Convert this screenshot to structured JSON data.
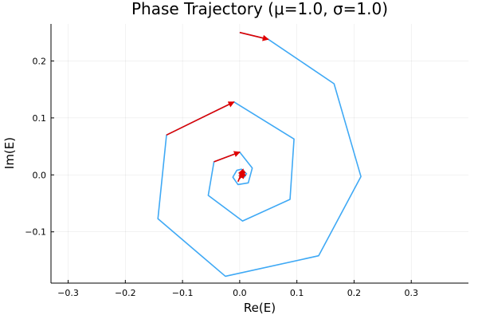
{
  "chart_data": {
    "type": "line",
    "title": "Phase Trajectory (μ=1.0, σ=1.0)",
    "xlabel": "Re(E)",
    "ylabel": "Im(E)",
    "xlim": [
      -0.33,
      0.4
    ],
    "ylim": [
      -0.19,
      0.265
    ],
    "xticks": [
      -0.3,
      -0.2,
      -0.1,
      0.0,
      0.1,
      0.2,
      0.3
    ],
    "xtick_labels": [
      "−0.3",
      "−0.2",
      "−0.1",
      "0.0",
      "0.1",
      "0.2",
      "0.3"
    ],
    "yticks": [
      -0.1,
      0.0,
      0.1,
      0.2
    ],
    "ytick_labels": [
      "−0.1",
      "0.0",
      "0.1",
      "0.2"
    ],
    "grid": true,
    "legend": "none",
    "series": [
      {
        "name": "trajectory",
        "color": "#3fa9f5",
        "x": [
          0.0,
          0.05,
          0.165,
          0.212,
          0.138,
          -0.025,
          -0.143,
          -0.128,
          -0.01,
          0.095,
          0.088,
          0.005,
          -0.055,
          -0.045,
          0.0,
          0.022,
          0.015,
          -0.003,
          -0.012,
          -0.005,
          0.003,
          0.012,
          0.008,
          0.003,
          0.0,
          0.004,
          0.007,
          0.005,
          0.003
        ],
        "y": [
          0.25,
          0.238,
          0.16,
          -0.003,
          -0.142,
          -0.178,
          -0.077,
          0.07,
          0.128,
          0.063,
          -0.043,
          -0.081,
          -0.036,
          0.023,
          0.04,
          0.012,
          -0.014,
          -0.017,
          -0.004,
          0.008,
          0.01,
          0.002,
          -0.004,
          -0.003,
          0.001,
          0.003,
          0.001,
          -0.001,
          0.0
        ]
      }
    ],
    "arrows": [
      {
        "color": "#e00000",
        "from": [
          0.0,
          0.25
        ],
        "to": [
          0.05,
          0.238
        ]
      },
      {
        "color": "#e00000",
        "from": [
          -0.128,
          0.07
        ],
        "to": [
          -0.01,
          0.128
        ]
      },
      {
        "color": "#e00000",
        "from": [
          -0.045,
          0.023
        ],
        "to": [
          0.0,
          0.04
        ]
      },
      {
        "color": "#e00000",
        "from": [
          -0.003,
          -0.012
        ],
        "to": [
          0.006,
          0.01
        ]
      },
      {
        "color": "#e00000",
        "from": [
          0.0,
          -0.007
        ],
        "to": [
          0.008,
          0.007
        ]
      },
      {
        "color": "#e00000",
        "from": [
          0.002,
          -0.005
        ],
        "to": [
          0.007,
          0.004
        ]
      },
      {
        "color": "#e00000",
        "from": [
          0.01,
          0.005
        ],
        "to": [
          0.001,
          -0.004
        ]
      }
    ]
  }
}
